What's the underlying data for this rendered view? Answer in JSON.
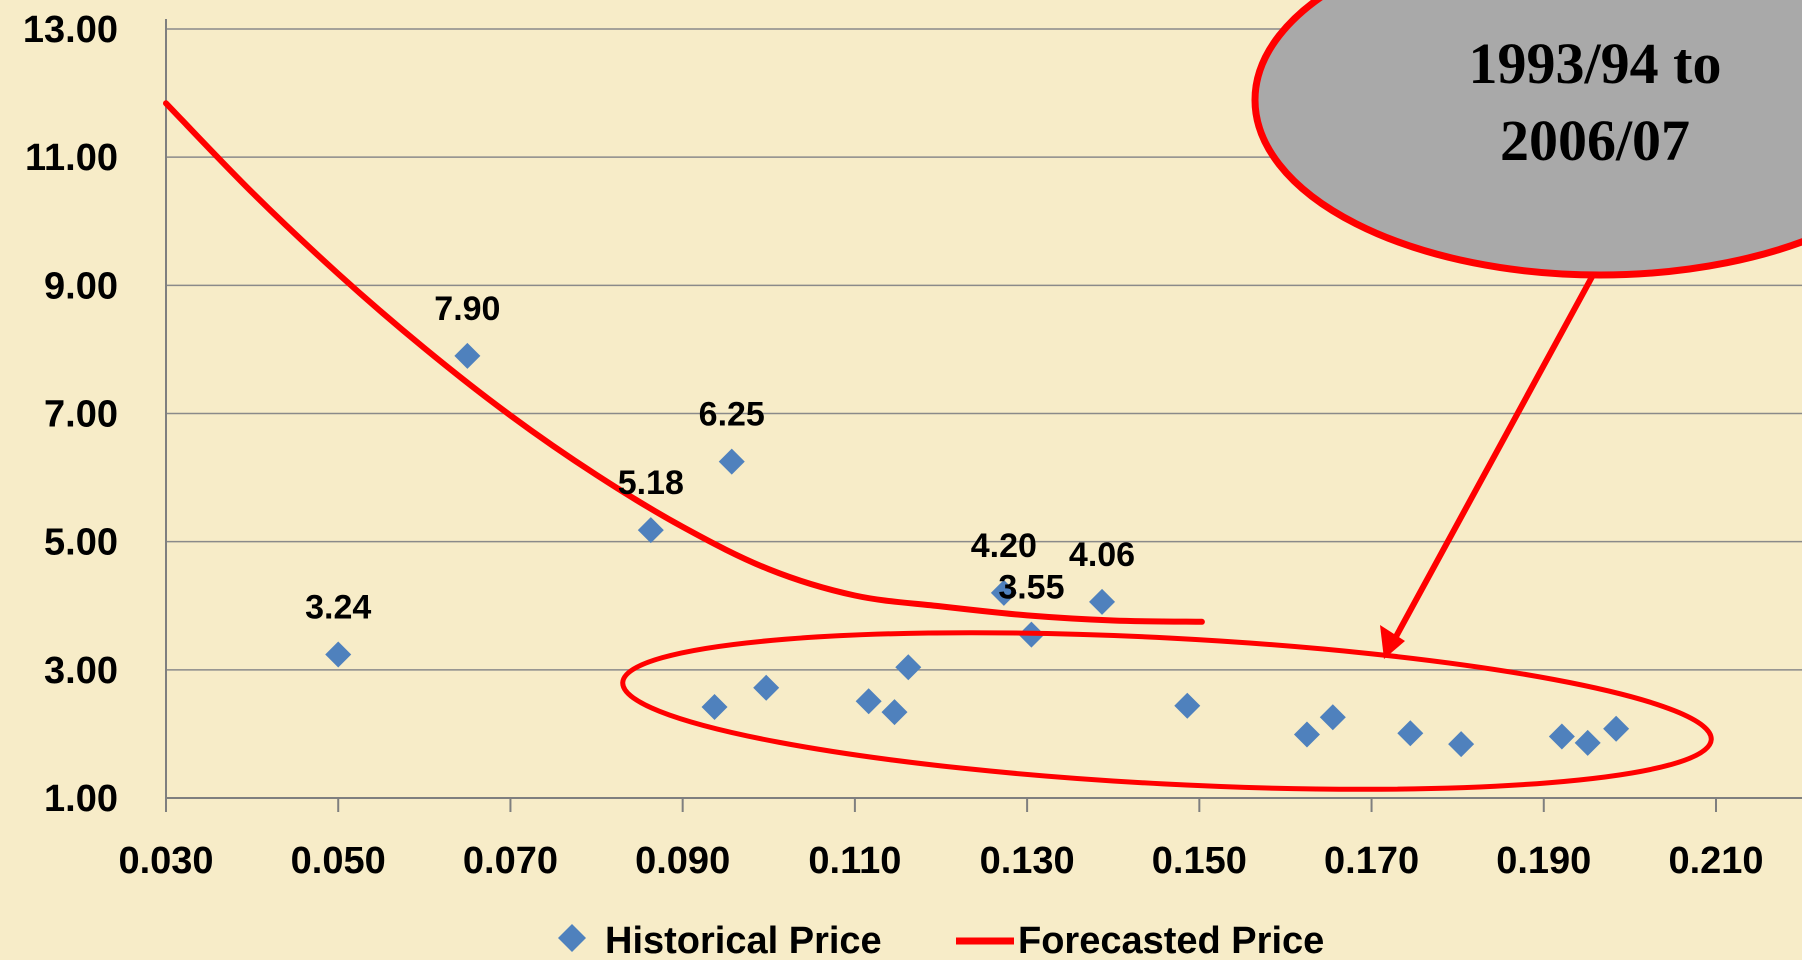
{
  "chart_data": {
    "type": "scatter",
    "xlim": [
      0.03,
      0.21
    ],
    "ylim": [
      1.0,
      13.0
    ],
    "x_ticks": [
      "0.030",
      "0.050",
      "0.070",
      "0.090",
      "0.110",
      "0.130",
      "0.150",
      "0.170",
      "0.190",
      "0.210"
    ],
    "y_ticks": [
      "1.00",
      "3.00",
      "5.00",
      "7.00",
      "9.00",
      "11.00",
      "13.00"
    ],
    "grid": "horizontal",
    "legend_position": "bottom",
    "series": [
      {
        "name": "Historical Price",
        "kind": "scatter",
        "marker": "diamond",
        "color": "#4f81bd",
        "points": [
          {
            "x": 0.05,
            "y": 3.24,
            "label": "3.24"
          },
          {
            "x": 0.065,
            "y": 7.9,
            "label": "7.90"
          },
          {
            "x": 0.0863,
            "y": 5.18,
            "label": "5.18"
          },
          {
            "x": 0.0957,
            "y": 6.25,
            "label": "6.25"
          },
          {
            "x": 0.1273,
            "y": 4.2,
            "label": "4.20"
          },
          {
            "x": 0.1305,
            "y": 3.55,
            "label": "3.55"
          },
          {
            "x": 0.1387,
            "y": 4.06,
            "label": "4.06"
          },
          {
            "x": 0.0937,
            "y": 2.42
          },
          {
            "x": 0.0997,
            "y": 2.72
          },
          {
            "x": 0.1116,
            "y": 2.51
          },
          {
            "x": 0.1146,
            "y": 2.34
          },
          {
            "x": 0.1162,
            "y": 3.04
          },
          {
            "x": 0.1486,
            "y": 2.44
          },
          {
            "x": 0.1625,
            "y": 1.99
          },
          {
            "x": 0.1655,
            "y": 2.26
          },
          {
            "x": 0.1745,
            "y": 2.01
          },
          {
            "x": 0.1804,
            "y": 1.84
          },
          {
            "x": 0.1921,
            "y": 1.96
          },
          {
            "x": 0.1951,
            "y": 1.86
          },
          {
            "x": 0.1984,
            "y": 2.08
          }
        ]
      },
      {
        "name": "Forecasted Price",
        "kind": "line",
        "color": "#ff0000",
        "points": [
          {
            "x": 0.03,
            "y": 11.84
          },
          {
            "x": 0.04,
            "y": 10.45
          },
          {
            "x": 0.05,
            "y": 9.18
          },
          {
            "x": 0.06,
            "y": 8.02
          },
          {
            "x": 0.07,
            "y": 6.97
          },
          {
            "x": 0.08,
            "y": 6.04
          },
          {
            "x": 0.09,
            "y": 5.23
          },
          {
            "x": 0.1,
            "y": 4.57
          },
          {
            "x": 0.11,
            "y": 4.16
          },
          {
            "x": 0.12,
            "y": 3.99
          },
          {
            "x": 0.13,
            "y": 3.85
          },
          {
            "x": 0.14,
            "y": 3.77
          },
          {
            "x": 0.1503,
            "y": 3.75
          }
        ]
      }
    ],
    "annotations": [
      {
        "kind": "callout",
        "lines": [
          "1993/94 to",
          "2006/07"
        ]
      },
      {
        "kind": "ellipse-highlight"
      },
      {
        "kind": "arrow"
      }
    ]
  }
}
